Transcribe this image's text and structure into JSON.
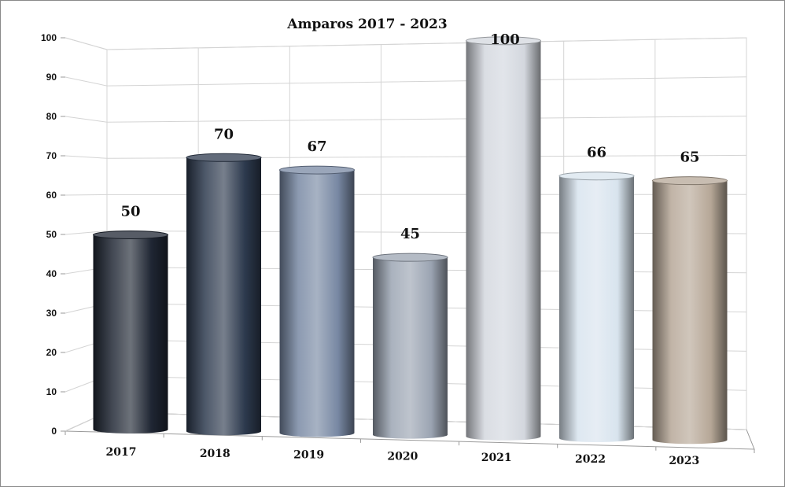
{
  "chart_data": {
    "type": "bar",
    "title": "Amparos 2017 - 2023",
    "categories": [
      "2017",
      "2018",
      "2019",
      "2020",
      "2021",
      "2022",
      "2023"
    ],
    "values": [
      50,
      70,
      67,
      45,
      100,
      66,
      65
    ],
    "ylim": [
      0,
      100
    ],
    "yticks": [
      0,
      10,
      20,
      30,
      40,
      50,
      60,
      70,
      80,
      90,
      100
    ],
    "xlabel": "",
    "ylabel": "",
    "grid": true,
    "legend": "none",
    "style": "3d-cylinder",
    "colors": [
      "#1f2633",
      "#2d3a4e",
      "#7888a3",
      "#9ba4b2",
      "#d3d7de",
      "#d8e4ee",
      "#b6a797"
    ]
  }
}
